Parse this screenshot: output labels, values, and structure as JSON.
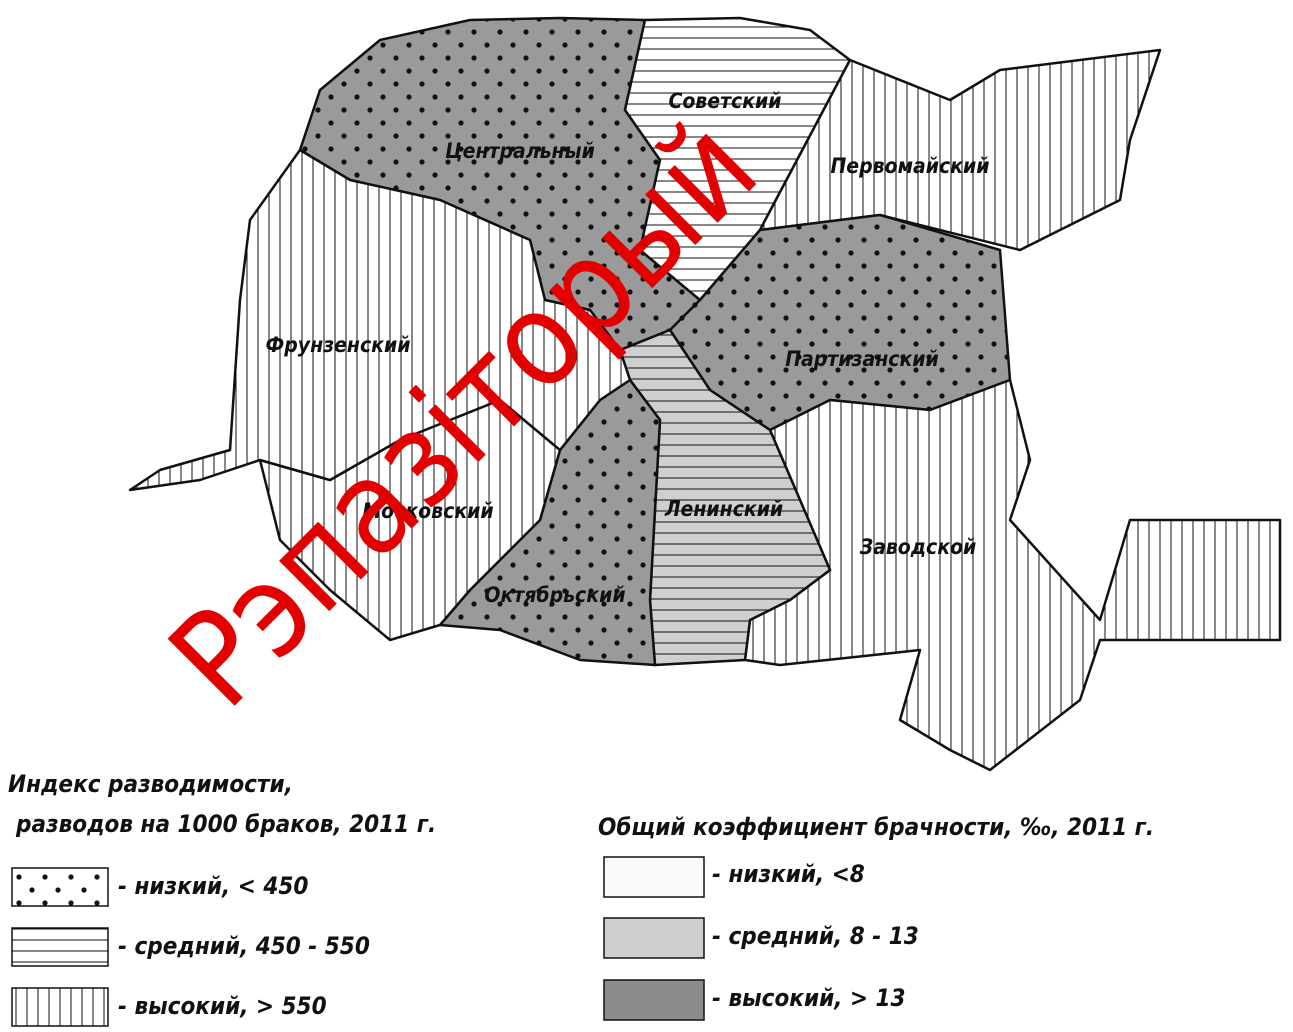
{
  "districts": [
    {
      "name": "Советский"
    },
    {
      "name": "Центральный"
    },
    {
      "name": "Первомайский"
    },
    {
      "name": "Фрунзенский"
    },
    {
      "name": "Партизанский"
    },
    {
      "name": "Московский"
    },
    {
      "name": "Ленинский"
    },
    {
      "name": "Заводской"
    },
    {
      "name": "Октябрьский"
    }
  ],
  "legend_divorce": {
    "title_line1": "Индекс разводимости,",
    "title_line2": "разводов на 1000 браков, 2011 г.",
    "items": [
      "- низкий, < 450",
      "- средний, 450 - 550",
      "- высокий, > 550"
    ]
  },
  "legend_marriage": {
    "title": "Общий коэффициент брачности, ‰, 2011 г.",
    "items": [
      "- низкий, <8",
      "- средний, 8 - 13",
      "- высокий, > 13"
    ]
  },
  "watermark": "Рэпазіторый"
}
